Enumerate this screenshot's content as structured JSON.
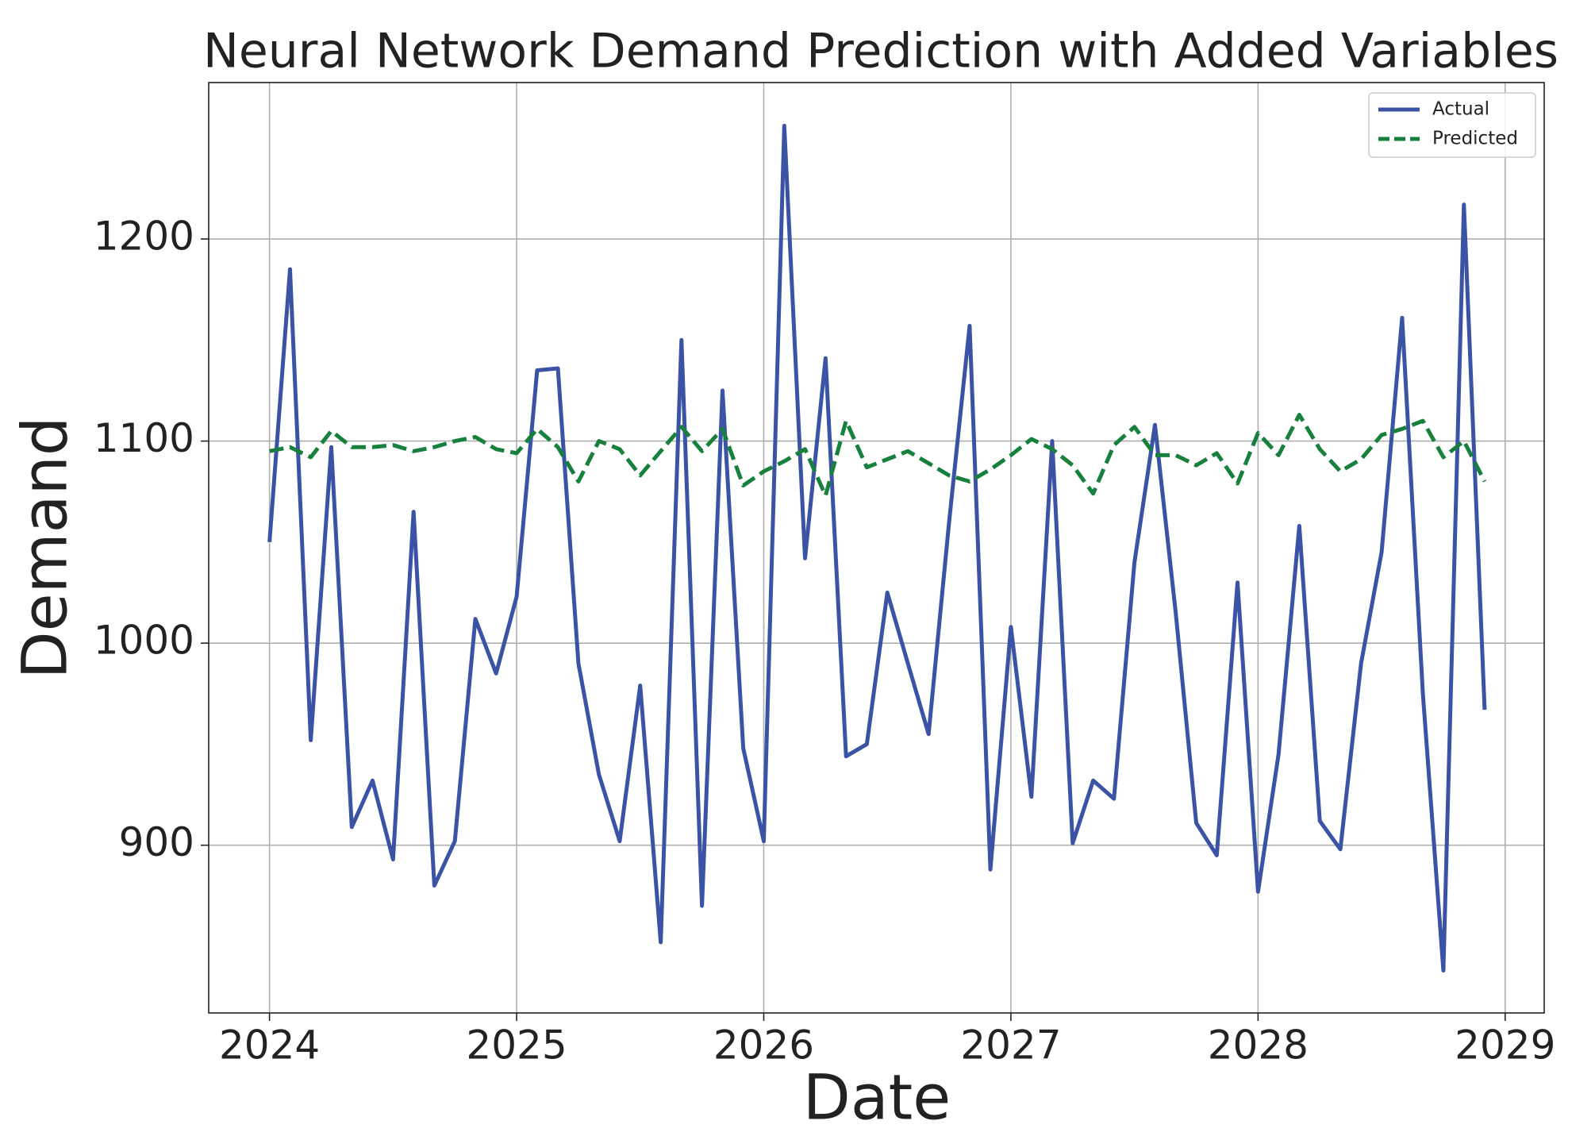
{
  "chart_data": {
    "type": "line",
    "title": "Neural Network Demand Prediction with Added Variables",
    "x_label": "Date",
    "y_label": "Demand",
    "x": [
      2024,
      2024.083,
      2024.167,
      2024.25,
      2024.333,
      2024.417,
      2024.5,
      2024.583,
      2024.667,
      2024.75,
      2024.833,
      2024.917,
      2025,
      2025.083,
      2025.167,
      2025.25,
      2025.333,
      2025.417,
      2025.5,
      2025.583,
      2025.667,
      2025.75,
      2025.833,
      2025.917,
      2026,
      2026.083,
      2026.167,
      2026.25,
      2026.333,
      2026.417,
      2026.5,
      2026.583,
      2026.667,
      2026.75,
      2026.833,
      2026.917,
      2027,
      2027.083,
      2027.167,
      2027.25,
      2027.333,
      2027.417,
      2027.5,
      2027.583,
      2027.667,
      2027.75,
      2027.833,
      2027.917,
      2028,
      2028.083,
      2028.167,
      2028.25,
      2028.333,
      2028.417,
      2028.5,
      2028.583,
      2028.667,
      2028.75,
      2028.833,
      2028.917
    ],
    "series": [
      {
        "name": "Actual",
        "color": "#3a53a4",
        "dash": false,
        "values": [
          1050,
          1185,
          952,
          1097,
          909,
          932,
          893,
          1065,
          880,
          902,
          1012,
          985,
          1023,
          1135,
          1136,
          990,
          935,
          902,
          979,
          852,
          1150,
          870,
          1125,
          948,
          902,
          1256,
          1042,
          1141,
          944,
          950,
          1025,
          990,
          955,
          1060,
          1157,
          888,
          1008,
          924,
          1100,
          901,
          932,
          923,
          1040,
          1108,
          1015,
          911,
          895,
          1030,
          877,
          945,
          1058,
          912,
          898,
          990,
          1045,
          1161,
          975,
          838,
          1217,
          967
        ]
      },
      {
        "name": "Predicted",
        "color": "#17803d",
        "dash": true,
        "values": [
          1095,
          1097,
          1092,
          1105,
          1097,
          1097,
          1098,
          1095,
          1097,
          1100,
          1102,
          1096,
          1094,
          1106,
          1097,
          1080,
          1100,
          1096,
          1083,
          1095,
          1107,
          1095,
          1106,
          1078,
          1085,
          1090,
          1096,
          1073,
          1110,
          1087,
          1091,
          1095,
          1089,
          1083,
          1080,
          1086,
          1093,
          1101,
          1096,
          1088,
          1074,
          1098,
          1107,
          1093,
          1093,
          1088,
          1094,
          1079,
          1104,
          1093,
          1113,
          1096,
          1085,
          1091,
          1103,
          1106,
          1110,
          1092,
          1100,
          1080
        ]
      }
    ],
    "xlim": [
      2023.754,
      2029.158
    ],
    "xticks": [
      2024,
      2025,
      2026,
      2027,
      2028,
      2029
    ],
    "ylim": [
      817,
      1277.4
    ],
    "yticks": [
      900,
      1000,
      1100,
      1200
    ],
    "grid": true,
    "legend": "upper right"
  }
}
